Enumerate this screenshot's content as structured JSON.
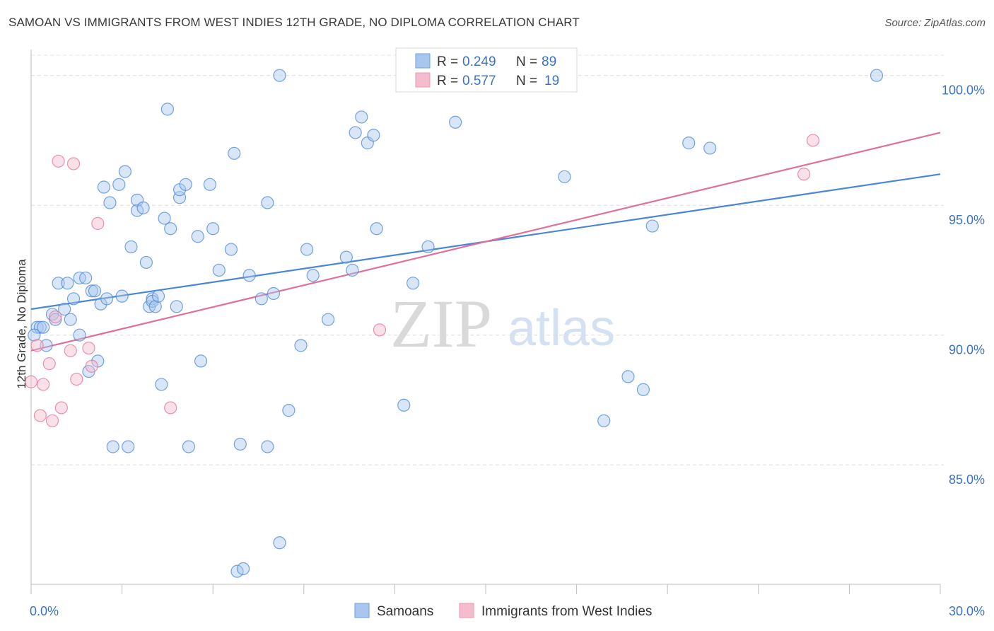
{
  "title": "SAMOAN VS IMMIGRANTS FROM WEST INDIES 12TH GRADE, NO DIPLOMA CORRELATION CHART",
  "source": "Source: ZipAtlas.com",
  "watermark": {
    "zip": "ZIP",
    "atlas": "atlas"
  },
  "colors": {
    "blue": "#4a86d8",
    "blue_fill": "#a9c7ee",
    "pink": "#e07099",
    "pink_fill": "#f5bccd",
    "tick": "#3b73c8"
  },
  "legend": {
    "rows": [
      {
        "r_label": "R =",
        "r_value": "0.249",
        "n_label": "N =",
        "n_value": "89"
      },
      {
        "r_label": "R =",
        "r_value": "0.577",
        "n_label": "N =",
        "n_value": "19"
      }
    ]
  },
  "bottom_legend": [
    "Samoans",
    "Immigrants from West Indies"
  ],
  "chart_data": {
    "type": "scatter",
    "title": "SAMOAN VS IMMIGRANTS FROM WEST INDIES 12TH GRADE, NO DIPLOMA CORRELATION CHART",
    "xlabel": "",
    "ylabel": "12th Grade, No Diploma",
    "xlim": [
      0,
      30
    ],
    "ylim": [
      80.4,
      101.0
    ],
    "x_tick_labels": [
      "0.0%",
      "30.0%"
    ],
    "y_ticks": [
      85,
      90,
      95,
      100
    ],
    "y_tick_labels": [
      "85.0%",
      "90.0%",
      "95.0%",
      "100.0%"
    ],
    "grid": true,
    "legend_placement": "top-center",
    "series": [
      {
        "name": "Samoans",
        "color": "#4a86d8",
        "trend": {
          "x": [
            0,
            30
          ],
          "y": [
            91.0,
            96.2
          ]
        },
        "points": [
          [
            0.2,
            90.3
          ],
          [
            0.3,
            90.3
          ],
          [
            0.4,
            90.3
          ],
          [
            0.5,
            89.6
          ],
          [
            0.7,
            90.8
          ],
          [
            0.8,
            90.6
          ],
          [
            0.9,
            92.0
          ],
          [
            1.1,
            91.0
          ],
          [
            1.2,
            92.0
          ],
          [
            1.3,
            90.6
          ],
          [
            1.4,
            91.4
          ],
          [
            1.6,
            90.0
          ],
          [
            1.6,
            92.2
          ],
          [
            1.8,
            92.2
          ],
          [
            1.9,
            88.6
          ],
          [
            2.0,
            91.7
          ],
          [
            2.1,
            91.7
          ],
          [
            2.2,
            89.0
          ],
          [
            2.3,
            91.2
          ],
          [
            2.4,
            95.7
          ],
          [
            2.5,
            91.4
          ],
          [
            2.6,
            95.1
          ],
          [
            2.7,
            85.7
          ],
          [
            2.9,
            95.8
          ],
          [
            3.0,
            91.5
          ],
          [
            3.1,
            96.3
          ],
          [
            3.2,
            85.7
          ],
          [
            3.3,
            93.4
          ],
          [
            3.5,
            94.8
          ],
          [
            3.5,
            95.2
          ],
          [
            3.7,
            94.9
          ],
          [
            3.8,
            92.8
          ],
          [
            3.9,
            91.1
          ],
          [
            4.0,
            91.4
          ],
          [
            4.0,
            91.3
          ],
          [
            4.1,
            91.1
          ],
          [
            4.2,
            91.5
          ],
          [
            4.3,
            88.1
          ],
          [
            4.4,
            94.5
          ],
          [
            4.5,
            98.7
          ],
          [
            4.6,
            94.1
          ],
          [
            4.8,
            91.1
          ],
          [
            4.9,
            95.3
          ],
          [
            4.9,
            95.6
          ],
          [
            5.1,
            95.8
          ],
          [
            5.2,
            85.7
          ],
          [
            5.5,
            93.8
          ],
          [
            5.6,
            89.0
          ],
          [
            5.9,
            95.8
          ],
          [
            6.0,
            94.1
          ],
          [
            6.2,
            92.5
          ],
          [
            6.6,
            93.3
          ],
          [
            6.7,
            97.0
          ],
          [
            6.8,
            80.9
          ],
          [
            6.9,
            85.8
          ],
          [
            7.0,
            81.0
          ],
          [
            7.2,
            92.3
          ],
          [
            7.6,
            91.4
          ],
          [
            7.8,
            95.1
          ],
          [
            7.8,
            85.7
          ],
          [
            8.0,
            91.6
          ],
          [
            8.2,
            82.0
          ],
          [
            8.2,
            100.0
          ],
          [
            8.5,
            87.1
          ],
          [
            8.9,
            89.6
          ],
          [
            9.1,
            93.3
          ],
          [
            9.3,
            92.3
          ],
          [
            9.8,
            90.6
          ],
          [
            10.4,
            93.0
          ],
          [
            10.6,
            92.5
          ],
          [
            10.7,
            97.8
          ],
          [
            10.9,
            98.4
          ],
          [
            11.1,
            97.4
          ],
          [
            11.3,
            97.7
          ],
          [
            11.4,
            94.1
          ],
          [
            12.3,
            87.3
          ],
          [
            12.6,
            92.0
          ],
          [
            13.1,
            93.4
          ],
          [
            14.0,
            98.2
          ],
          [
            14.9,
            100.0
          ],
          [
            17.6,
            96.1
          ],
          [
            18.9,
            86.7
          ],
          [
            19.7,
            88.4
          ],
          [
            20.2,
            87.9
          ],
          [
            20.5,
            94.2
          ],
          [
            21.7,
            97.4
          ],
          [
            22.4,
            97.2
          ],
          [
            27.9,
            100.0
          ],
          [
            0.1,
            90.0
          ]
        ]
      },
      {
        "name": "Immigrants from West Indies",
        "color": "#e07099",
        "trend": {
          "x": [
            0,
            30
          ],
          "y": [
            89.4,
            97.8
          ]
        },
        "points": [
          [
            0.0,
            88.2
          ],
          [
            0.2,
            89.6
          ],
          [
            0.3,
            86.9
          ],
          [
            0.4,
            88.1
          ],
          [
            0.6,
            88.9
          ],
          [
            0.7,
            86.7
          ],
          [
            0.8,
            90.7
          ],
          [
            0.9,
            96.7
          ],
          [
            1.0,
            87.2
          ],
          [
            1.3,
            89.4
          ],
          [
            1.4,
            96.6
          ],
          [
            1.5,
            88.3
          ],
          [
            1.9,
            89.5
          ],
          [
            2.0,
            88.8
          ],
          [
            2.2,
            94.3
          ],
          [
            4.6,
            87.2
          ],
          [
            11.5,
            90.2
          ],
          [
            25.5,
            96.2
          ],
          [
            25.8,
            97.5
          ]
        ]
      }
    ]
  }
}
